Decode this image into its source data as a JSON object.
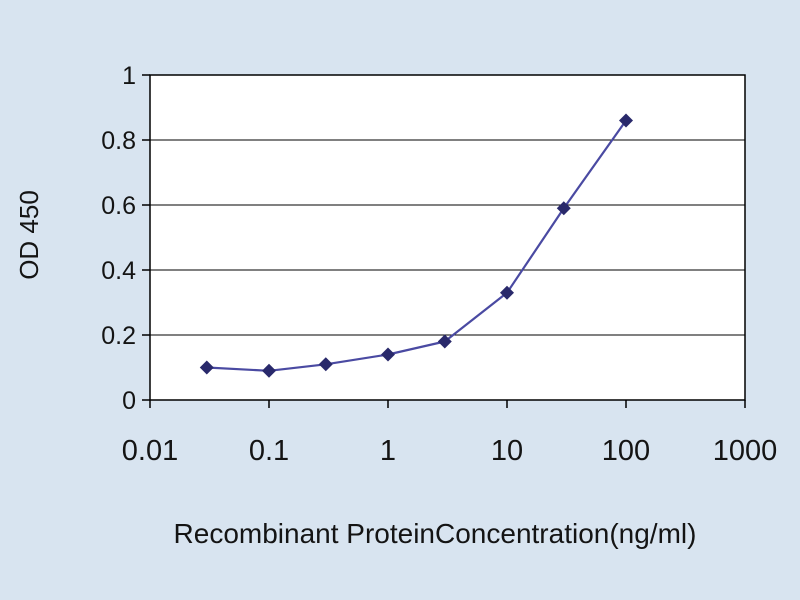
{
  "chart_data": {
    "type": "line",
    "title": "",
    "xlabel": "Recombinant ProteinConcentration(ng/ml)",
    "ylabel": "OD 450",
    "x_scale": "log",
    "xlim": [
      0.01,
      1000
    ],
    "ylim": [
      0,
      1
    ],
    "x_ticks": [
      0.01,
      0.1,
      1,
      10,
      100,
      1000
    ],
    "x_tick_labels": [
      "0.01",
      "0.1",
      "1",
      "10",
      "100",
      "1000"
    ],
    "y_ticks": [
      0,
      0.2,
      0.4,
      0.6,
      0.8,
      1
    ],
    "y_tick_labels": [
      "0",
      "0.2",
      "0.4",
      "0.6",
      "0.8",
      "1"
    ],
    "grid": "horizontal",
    "legend": "none",
    "series": [
      {
        "name": "OD 450",
        "marker": "diamond",
        "line_color": "#4a4aa2",
        "marker_color": "#29296b",
        "x": [
          0.03,
          0.1,
          0.3,
          1,
          3,
          10,
          30,
          100
        ],
        "y": [
          0.1,
          0.09,
          0.11,
          0.14,
          0.18,
          0.33,
          0.59,
          0.86
        ]
      }
    ],
    "background_color": "#d8e4f0",
    "plot_background": "#ffffff",
    "axis_color": "#000000"
  }
}
